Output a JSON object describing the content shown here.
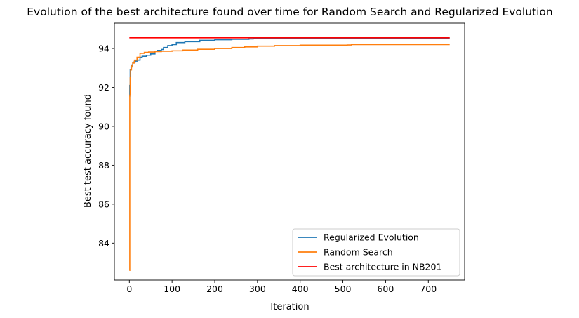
{
  "chart_data": {
    "type": "line",
    "title": "Evolution of the best architecture found over time for Random Search and Regularized Evolution",
    "xlabel": "Iteration",
    "ylabel": "Best test accuracy found",
    "xlim": [
      -35,
      785
    ],
    "ylim": [
      82.1,
      95.3
    ],
    "xticks": [
      0,
      100,
      200,
      300,
      400,
      500,
      600,
      700
    ],
    "yticks": [
      84,
      86,
      88,
      90,
      92,
      94
    ],
    "grid": false,
    "legend_position": "lower-right",
    "series": [
      {
        "name": "Regularized Evolution",
        "color": "#1f77b4",
        "x": [
          0,
          1,
          2,
          4,
          6,
          8,
          10,
          14,
          18,
          25,
          30,
          40,
          50,
          60,
          65,
          75,
          80,
          90,
          100,
          110,
          130,
          165,
          200,
          240,
          280,
          290,
          330,
          370,
          750
        ],
        "y": [
          91.55,
          92.1,
          92.9,
          93.05,
          93.15,
          93.25,
          93.3,
          93.35,
          93.4,
          93.55,
          93.6,
          93.65,
          93.72,
          93.85,
          93.9,
          93.95,
          94.05,
          94.15,
          94.2,
          94.3,
          94.35,
          94.42,
          94.45,
          94.47,
          94.49,
          94.51,
          94.52,
          94.53,
          94.53
        ]
      },
      {
        "name": "Random Search",
        "color": "#ff7f0e",
        "x": [
          0,
          1,
          2,
          3,
          5,
          8,
          12,
          18,
          25,
          35,
          45,
          60,
          75,
          100,
          125,
          160,
          200,
          240,
          270,
          300,
          340,
          400,
          510,
          520,
          750
        ],
        "y": [
          82.6,
          91.6,
          92.5,
          92.9,
          93.1,
          93.25,
          93.4,
          93.55,
          93.75,
          93.8,
          93.82,
          93.84,
          93.86,
          93.88,
          93.92,
          93.96,
          94.0,
          94.05,
          94.08,
          94.12,
          94.15,
          94.17,
          94.18,
          94.2,
          94.2
        ]
      },
      {
        "name": "Best architecture in NB201",
        "color": "#ff0000",
        "x": [
          0,
          750
        ],
        "y": [
          94.55,
          94.55
        ]
      }
    ]
  }
}
